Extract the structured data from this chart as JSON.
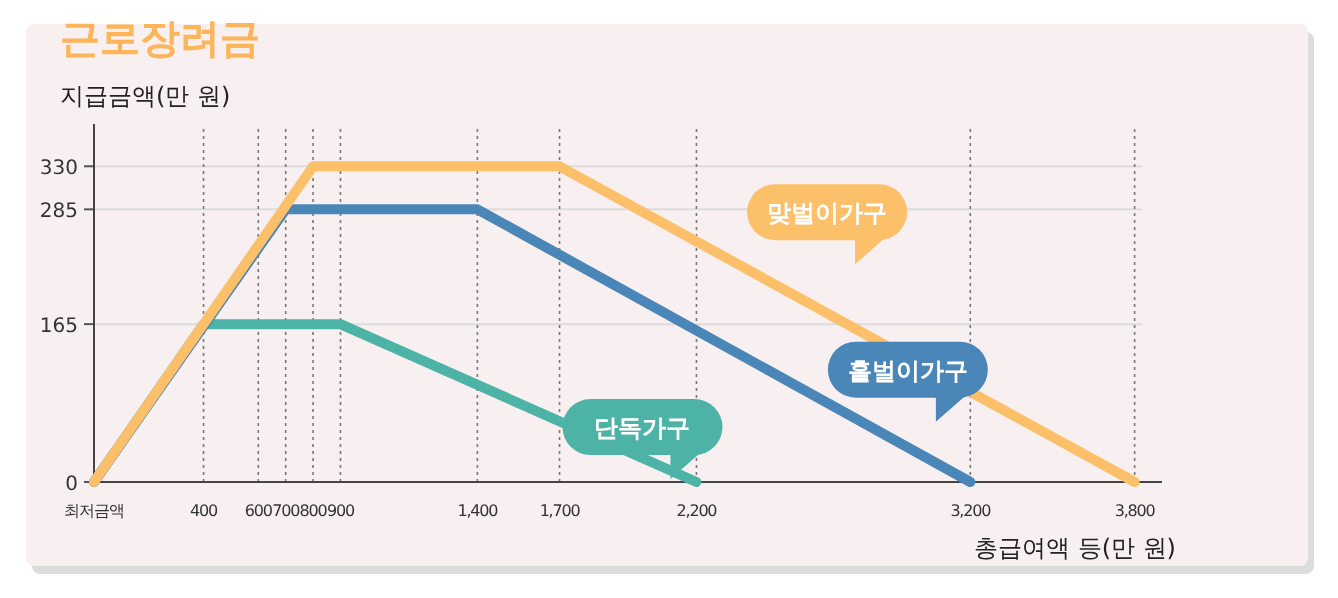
{
  "chart_data": {
    "type": "line",
    "title": "근로장려금",
    "ylabel": "지급금액(만 원)",
    "xlabel": "총급여액 등(만 원)",
    "xlim": [
      0,
      3900
    ],
    "ylim": [
      0,
      370
    ],
    "xticks": [
      {
        "value": 0,
        "label": "최저금액"
      },
      400,
      600,
      700,
      800,
      900,
      {
        "value": 1400,
        "label": "1,400"
      },
      {
        "value": 1700,
        "label": "1,700"
      },
      {
        "value": 2200,
        "label": "2,200"
      },
      {
        "value": 3200,
        "label": "3,200"
      },
      {
        "value": 3800,
        "label": "3,800"
      }
    ],
    "yticks": [
      0,
      165,
      285,
      330
    ],
    "grid": true,
    "legend": false,
    "marker": "none",
    "line_style": "solid",
    "series": [
      {
        "name": "단독가구",
        "color": "#4db3a6",
        "x": [
          0,
          400,
          900,
          2200
        ],
        "values": [
          0,
          165,
          165,
          0
        ]
      },
      {
        "name": "홑벌이가구",
        "color": "#4a86b8",
        "x": [
          0,
          700,
          1400,
          3200
        ],
        "values": [
          0,
          285,
          285,
          0
        ]
      },
      {
        "name": "맞벌이가구",
        "color": "#fdc06a",
        "x": [
          0,
          800,
          1700,
          3800
        ],
        "values": [
          0,
          330,
          330,
          0
        ]
      }
    ]
  }
}
